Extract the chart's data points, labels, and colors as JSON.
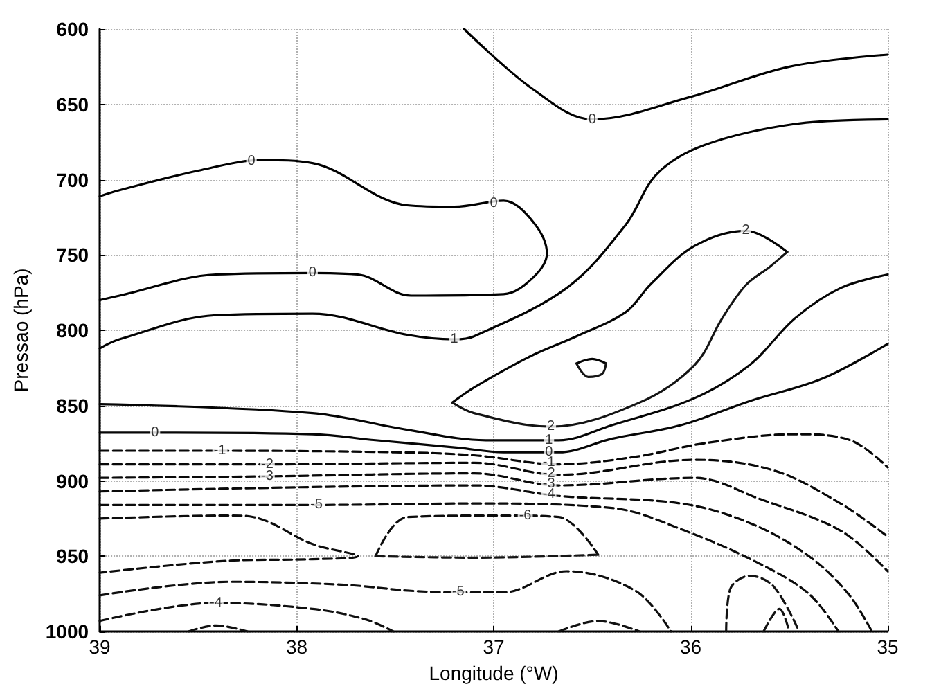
{
  "chart_data": {
    "type": "line",
    "xlabel": "Longitude (°W)",
    "ylabel": "Pressao (hPa)",
    "xlim": [
      39,
      35
    ],
    "xticks": [
      39,
      38,
      37,
      36,
      35
    ],
    "ylim": [
      1000,
      600
    ],
    "yticks": [
      600,
      650,
      700,
      750,
      800,
      850,
      900,
      950,
      1000
    ],
    "grid": true,
    "marker": "none",
    "series": [
      {
        "color": "#000000",
        "line_style": "solid",
        "x": [
          37.15,
          36.8,
          36.5,
          36.0,
          35.5,
          35.0
        ],
        "values": [
          600,
          640,
          660,
          645,
          625,
          617
        ]
      },
      {
        "color": "#010101",
        "line_style": "solid",
        "x": [
          39.0,
          38.9,
          38.5,
          38.17,
          37.92,
          37.44,
          37.2,
          36.95,
          36.8,
          36.73,
          36.8,
          36.95,
          37.42,
          37.69,
          37.92,
          38.41,
          38.9,
          39.0
        ],
        "values": [
          711,
          707,
          694,
          687,
          689,
          717,
          718,
          714,
          728,
          749,
          765,
          776,
          777,
          763,
          762,
          763,
          777,
          780
        ]
      },
      {
        "color": "#020202",
        "line_style": "solid",
        "x": [
          39.0,
          38.9,
          38.41,
          37.92,
          37.44,
          37.2,
          37.1,
          36.63,
          36.33,
          36.17,
          35.93,
          35.47,
          35.0
        ],
        "values": [
          812,
          806,
          790,
          789,
          803,
          806,
          804,
          772,
          730,
          696,
          677,
          663,
          660
        ]
      },
      {
        "color": "#030303",
        "line_style": "solid",
        "x": [
          37.21,
          37.1,
          36.81,
          36.58,
          36.33,
          36.2,
          35.98,
          35.72,
          35.51
        ],
        "values": [
          848,
          838,
          817,
          804,
          788,
          769,
          744,
          734,
          748
        ]
      },
      {
        "color": "#141414",
        "line_style": "solid",
        "x": [
          37.21,
          37.1,
          36.71,
          36.26,
          35.98,
          35.84,
          35.72,
          35.6,
          35.51
        ],
        "values": [
          848,
          855,
          864,
          848,
          823,
          792,
          770,
          758,
          748
        ]
      },
      {
        "color": "#040404",
        "line_style": "solid",
        "x": [
          36.58,
          36.5,
          36.43
        ],
        "values": [
          822,
          819,
          822
        ]
      },
      {
        "color": "#151515",
        "line_style": "solid",
        "x": [
          36.58,
          36.52,
          36.45,
          36.43
        ],
        "values": [
          822,
          831,
          829,
          822
        ]
      },
      {
        "color": "#050505",
        "line_style": "solid",
        "x": [
          39.0,
          37.92,
          37.44,
          37.04,
          36.67,
          36.4,
          35.98,
          35.7,
          35.47,
          35.24,
          35.0
        ],
        "values": [
          849,
          855,
          866,
          873,
          873,
          863,
          845,
          823,
          792,
          772,
          763
        ]
      },
      {
        "color": "#060606",
        "line_style": "solid",
        "x": [
          39.0,
          38.67,
          37.92,
          37.6,
          37.18,
          36.95,
          36.67,
          36.4,
          36.05,
          35.7,
          35.33,
          35.0
        ],
        "values": [
          868,
          868,
          869,
          873,
          878,
          881,
          881,
          872,
          863,
          847,
          832,
          809
        ]
      },
      {
        "color": "#070707",
        "line_style": "dashed",
        "x": [
          39.0,
          38.39,
          37.5,
          37.1,
          36.67,
          36.28,
          35.93,
          35.47,
          35.19,
          35.0
        ],
        "values": [
          880,
          880,
          881,
          883,
          889,
          884,
          875,
          869,
          873,
          891
        ]
      },
      {
        "color": "#080808",
        "line_style": "dashed",
        "x": [
          39.0,
          38.15,
          37.1,
          36.67,
          35.98,
          35.58,
          35.24,
          35.0
        ],
        "values": [
          889,
          889,
          888,
          896,
          886,
          893,
          915,
          937
        ]
      },
      {
        "color": "#090909",
        "line_style": "dashed",
        "x": [
          39.0,
          38.15,
          37.1,
          36.67,
          35.98,
          35.65,
          35.24,
          35.0
        ],
        "values": [
          898,
          897,
          895,
          903,
          898,
          912,
          933,
          960
        ]
      },
      {
        "color": "#0a0a0a",
        "line_style": "dashed",
        "x": [
          39.0,
          37.1,
          36.67,
          36.05,
          35.7,
          35.4,
          35.2,
          35.08
        ],
        "values": [
          907,
          903,
          910,
          915,
          928,
          950,
          975,
          1000
        ]
      },
      {
        "color": "#0b0b0b",
        "line_style": "dashed",
        "x": [
          39.0,
          37.9,
          37.1,
          36.4,
          36.03,
          35.65,
          35.4,
          35.25
        ],
        "values": [
          916,
          916,
          915,
          918,
          933,
          955,
          975,
          1000
        ]
      },
      {
        "color": "#0c0c0c",
        "line_style": "dashed",
        "x": [
          39.0,
          38.34,
          38.22,
          37.92,
          37.69,
          37.92,
          38.34,
          39.0
        ],
        "values": [
          925,
          923,
          924,
          942,
          950,
          952,
          953,
          961
        ]
      },
      {
        "color": "#0d0d0d",
        "line_style": "dashed",
        "x": [
          37.6,
          37.44,
          36.95,
          36.67,
          36.47
        ],
        "values": [
          950,
          924,
          923,
          924,
          949
        ]
      },
      {
        "color": "#161616",
        "line_style": "dashed",
        "x": [
          37.6,
          37.1,
          36.47
        ],
        "values": [
          950,
          951,
          949
        ]
      },
      {
        "color": "#0e0e0e",
        "line_style": "dashed",
        "x": [
          39.0,
          38.34,
          37.76,
          37.42,
          37.18,
          36.95,
          36.63,
          36.28,
          36.1
        ],
        "values": [
          976,
          967,
          969,
          973,
          974,
          974,
          960,
          973,
          1000
        ]
      },
      {
        "color": "#0f0f0f",
        "line_style": "dashed",
        "x": [
          39.0,
          38.41,
          37.92,
          37.65,
          37.51
        ],
        "values": [
          993,
          981,
          985,
          992,
          1000
        ]
      },
      {
        "color": "#101010",
        "line_style": "dashed",
        "x": [
          38.55,
          38.41,
          38.25
        ],
        "values": [
          1000,
          996,
          1000
        ]
      },
      {
        "color": "#111111",
        "line_style": "dashed",
        "x": [
          36.67,
          36.47,
          36.26
        ],
        "values": [
          1000,
          993,
          1000
        ]
      },
      {
        "color": "#121212",
        "line_style": "dashed",
        "x": [
          35.82,
          35.8,
          35.7,
          35.58,
          35.45
        ],
        "values": [
          1000,
          972,
          963,
          970,
          1000
        ]
      },
      {
        "color": "#131313",
        "line_style": "dashed",
        "x": [
          35.63,
          35.55,
          35.5
        ],
        "values": [
          1000,
          985,
          1000
        ]
      }
    ],
    "annotations": [
      {
        "text": "0",
        "x": 36.5,
        "y": 660
      },
      {
        "text": "0",
        "x": 38.23,
        "y": 688
      },
      {
        "text": "0",
        "x": 37.0,
        "y": 716
      },
      {
        "text": "0",
        "x": 37.92,
        "y": 762
      },
      {
        "text": "1",
        "x": 37.2,
        "y": 806
      },
      {
        "text": "2",
        "x": 35.72,
        "y": 734
      },
      {
        "text": "2",
        "x": 36.71,
        "y": 864
      },
      {
        "text": "1",
        "x": 36.72,
        "y": 873
      },
      {
        "text": "0",
        "x": 36.72,
        "y": 881
      },
      {
        "text": "0",
        "x": 38.72,
        "y": 868
      },
      {
        "text": "-1",
        "x": 38.39,
        "y": 880
      },
      {
        "text": "-2",
        "x": 38.15,
        "y": 889
      },
      {
        "text": "-3",
        "x": 38.15,
        "y": 897
      },
      {
        "text": "-1",
        "x": 36.72,
        "y": 888
      },
      {
        "text": "-2",
        "x": 36.72,
        "y": 895
      },
      {
        "text": "-3",
        "x": 36.72,
        "y": 902
      },
      {
        "text": "-4",
        "x": 36.72,
        "y": 909
      },
      {
        "text": "-5",
        "x": 37.9,
        "y": 916
      },
      {
        "text": "-6",
        "x": 36.84,
        "y": 923
      },
      {
        "text": "-5",
        "x": 37.18,
        "y": 974
      },
      {
        "text": "-4",
        "x": 38.41,
        "y": 981
      }
    ]
  }
}
